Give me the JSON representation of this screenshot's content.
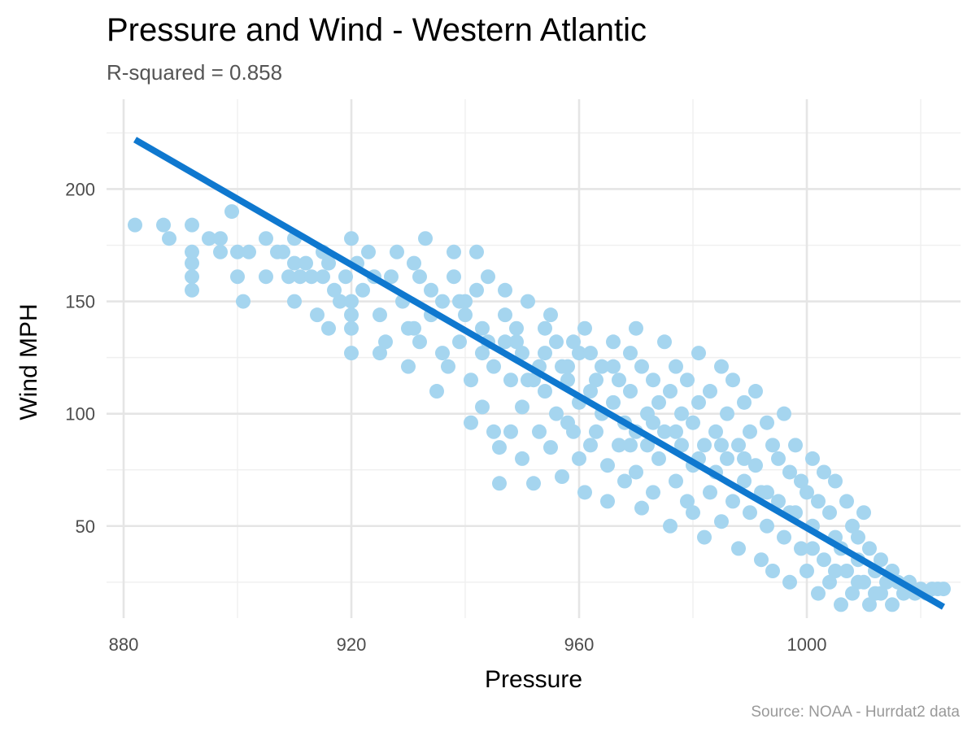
{
  "chart_data": {
    "type": "scatter",
    "title": "Pressure and Wind - Western Atlantic",
    "subtitle": "R-squared =  0.858",
    "xlabel": "Pressure",
    "ylabel": "Wind MPH",
    "caption": "Source: NOAA - Hurrdat2 data",
    "xlim": [
      877,
      1027
    ],
    "ylim": [
      9,
      240
    ],
    "x_ticks": [
      880,
      920,
      960,
      1000
    ],
    "x_tick_labels": [
      "880",
      "920",
      "960",
      "1000"
    ],
    "x_minor_ticks": [
      900,
      940,
      980,
      1020
    ],
    "y_ticks": [
      50,
      100,
      150,
      200
    ],
    "y_tick_labels": [
      "50",
      "100",
      "150",
      "200"
    ],
    "y_minor_ticks": [
      25,
      75,
      125,
      175,
      225
    ],
    "grid": true,
    "legend": "none",
    "colors": {
      "points": "#a5d5ef",
      "trend": "#0f78cf"
    },
    "trend_line": {
      "x": [
        882,
        1024
      ],
      "y": [
        222,
        14
      ]
    },
    "series": [
      {
        "points": [
          [
            882,
            184
          ],
          [
            887,
            184
          ],
          [
            888,
            178
          ],
          [
            892,
            184
          ],
          [
            892,
            172
          ],
          [
            892,
            167
          ],
          [
            892,
            161
          ],
          [
            892,
            155
          ],
          [
            895,
            178
          ],
          [
            897,
            178
          ],
          [
            897,
            172
          ],
          [
            899,
            190
          ],
          [
            900,
            172
          ],
          [
            900,
            161
          ],
          [
            901,
            150
          ],
          [
            902,
            172
          ],
          [
            905,
            178
          ],
          [
            905,
            161
          ],
          [
            907,
            172
          ],
          [
            908,
            172
          ],
          [
            909,
            161
          ],
          [
            910,
            178
          ],
          [
            910,
            167
          ],
          [
            910,
            150
          ],
          [
            911,
            161
          ],
          [
            912,
            167
          ],
          [
            913,
            161
          ],
          [
            914,
            144
          ],
          [
            915,
            172
          ],
          [
            915,
            161
          ],
          [
            916,
            167
          ],
          [
            916,
            138
          ],
          [
            917,
            155
          ],
          [
            918,
            150
          ],
          [
            919,
            161
          ],
          [
            920,
            178
          ],
          [
            920,
            150
          ],
          [
            920,
            144
          ],
          [
            920,
            138
          ],
          [
            920,
            127
          ],
          [
            921,
            167
          ],
          [
            922,
            155
          ],
          [
            923,
            172
          ],
          [
            924,
            161
          ],
          [
            925,
            144
          ],
          [
            925,
            127
          ],
          [
            926,
            132
          ],
          [
            927,
            161
          ],
          [
            928,
            172
          ],
          [
            929,
            150
          ],
          [
            930,
            138
          ],
          [
            930,
            121
          ],
          [
            931,
            167
          ],
          [
            932,
            132
          ],
          [
            932,
            161
          ],
          [
            933,
            178
          ],
          [
            934,
            144
          ],
          [
            934,
            155
          ],
          [
            935,
            110
          ],
          [
            936,
            150
          ],
          [
            937,
            121
          ],
          [
            938,
            172
          ],
          [
            938,
            161
          ],
          [
            939,
            132
          ],
          [
            940,
            150
          ],
          [
            940,
            144
          ],
          [
            941,
            115
          ],
          [
            941,
            96
          ],
          [
            942,
            172
          ],
          [
            942,
            155
          ],
          [
            943,
            138
          ],
          [
            943,
            103
          ],
          [
            944,
            161
          ],
          [
            944,
            132
          ],
          [
            945,
            92
          ],
          [
            945,
            121
          ],
          [
            946,
            85
          ],
          [
            946,
            69
          ],
          [
            947,
            144
          ],
          [
            947,
            155
          ],
          [
            948,
            115
          ],
          [
            948,
            92
          ],
          [
            949,
            132
          ],
          [
            949,
            138
          ],
          [
            950,
            103
          ],
          [
            950,
            80
          ],
          [
            950,
            127
          ],
          [
            951,
            150
          ],
          [
            952,
            69
          ],
          [
            952,
            115
          ],
          [
            953,
            121
          ],
          [
            953,
            92
          ],
          [
            954,
            138
          ],
          [
            954,
            110
          ],
          [
            955,
            144
          ],
          [
            955,
            85
          ],
          [
            956,
            132
          ],
          [
            956,
            100
          ],
          [
            957,
            121
          ],
          [
            957,
            72
          ],
          [
            958,
            115
          ],
          [
            958,
            96
          ],
          [
            959,
            132
          ],
          [
            959,
            92
          ],
          [
            960,
            127
          ],
          [
            960,
            105
          ],
          [
            960,
            80
          ],
          [
            961,
            138
          ],
          [
            961,
            65
          ],
          [
            962,
            110
          ],
          [
            962,
            86
          ],
          [
            963,
            115
          ],
          [
            963,
            92
          ],
          [
            964,
            121
          ],
          [
            964,
            100
          ],
          [
            965,
            77
          ],
          [
            965,
            61
          ],
          [
            966,
            132
          ],
          [
            966,
            105
          ],
          [
            967,
            115
          ],
          [
            967,
            86
          ],
          [
            968,
            96
          ],
          [
            968,
            70
          ],
          [
            969,
            127
          ],
          [
            969,
            110
          ],
          [
            970,
            138
          ],
          [
            970,
            92
          ],
          [
            970,
            74
          ],
          [
            971,
            58
          ],
          [
            971,
            121
          ],
          [
            972,
            100
          ],
          [
            972,
            86
          ],
          [
            973,
            115
          ],
          [
            973,
            65
          ],
          [
            974,
            105
          ],
          [
            974,
            80
          ],
          [
            975,
            132
          ],
          [
            975,
            92
          ],
          [
            976,
            50
          ],
          [
            976,
            110
          ],
          [
            977,
            121
          ],
          [
            977,
            70
          ],
          [
            978,
            100
          ],
          [
            978,
            86
          ],
          [
            979,
            61
          ],
          [
            979,
            115
          ],
          [
            980,
            96
          ],
          [
            980,
            77
          ],
          [
            980,
            56
          ],
          [
            981,
            127
          ],
          [
            981,
            105
          ],
          [
            982,
            86
          ],
          [
            982,
            45
          ],
          [
            983,
            110
          ],
          [
            983,
            65
          ],
          [
            984,
            92
          ],
          [
            984,
            74
          ],
          [
            985,
            121
          ],
          [
            985,
            52
          ],
          [
            986,
            100
          ],
          [
            986,
            80
          ],
          [
            987,
            115
          ],
          [
            987,
            61
          ],
          [
            988,
            86
          ],
          [
            988,
            40
          ],
          [
            989,
            105
          ],
          [
            989,
            70
          ],
          [
            990,
            92
          ],
          [
            990,
            56
          ],
          [
            991,
            110
          ],
          [
            991,
            77
          ],
          [
            992,
            65
          ],
          [
            992,
            35
          ],
          [
            993,
            96
          ],
          [
            993,
            50
          ],
          [
            994,
            86
          ],
          [
            994,
            30
          ],
          [
            995,
            80
          ],
          [
            995,
            61
          ],
          [
            996,
            100
          ],
          [
            996,
            45
          ],
          [
            997,
            74
          ],
          [
            997,
            25
          ],
          [
            998,
            86
          ],
          [
            998,
            56
          ],
          [
            999,
            70
          ],
          [
            999,
            40
          ],
          [
            1000,
            65
          ],
          [
            1000,
            30
          ],
          [
            1001,
            80
          ],
          [
            1001,
            50
          ],
          [
            1002,
            61
          ],
          [
            1002,
            20
          ],
          [
            1003,
            74
          ],
          [
            1003,
            35
          ],
          [
            1004,
            56
          ],
          [
            1004,
            25
          ],
          [
            1005,
            70
          ],
          [
            1005,
            45
          ],
          [
            1006,
            40
          ],
          [
            1006,
            15
          ],
          [
            1007,
            61
          ],
          [
            1007,
            30
          ],
          [
            1008,
            50
          ],
          [
            1008,
            20
          ],
          [
            1009,
            45
          ],
          [
            1009,
            35
          ],
          [
            1010,
            56
          ],
          [
            1010,
            25
          ],
          [
            1011,
            40
          ],
          [
            1011,
            15
          ],
          [
            1012,
            30
          ],
          [
            1012,
            20
          ],
          [
            1013,
            35
          ],
          [
            1014,
            25
          ],
          [
            1015,
            30
          ],
          [
            1015,
            15
          ],
          [
            1016,
            25
          ],
          [
            1017,
            20
          ],
          [
            1018,
            25
          ],
          [
            1019,
            20
          ],
          [
            1020,
            22
          ],
          [
            1021,
            20
          ],
          [
            1022,
            22
          ],
          [
            1023,
            22
          ],
          [
            1024,
            22
          ],
          [
            931,
            138
          ],
          [
            936,
            127
          ],
          [
            939,
            150
          ],
          [
            943,
            127
          ],
          [
            947,
            132
          ],
          [
            951,
            115
          ],
          [
            954,
            127
          ],
          [
            958,
            121
          ],
          [
            962,
            127
          ],
          [
            966,
            121
          ],
          [
            969,
            86
          ],
          [
            973,
            96
          ],
          [
            977,
            92
          ],
          [
            981,
            80
          ],
          [
            985,
            86
          ],
          [
            989,
            80
          ],
          [
            993,
            65
          ],
          [
            997,
            56
          ],
          [
            1001,
            40
          ],
          [
            1005,
            30
          ],
          [
            1009,
            25
          ],
          [
            1013,
            20
          ]
        ]
      }
    ]
  }
}
